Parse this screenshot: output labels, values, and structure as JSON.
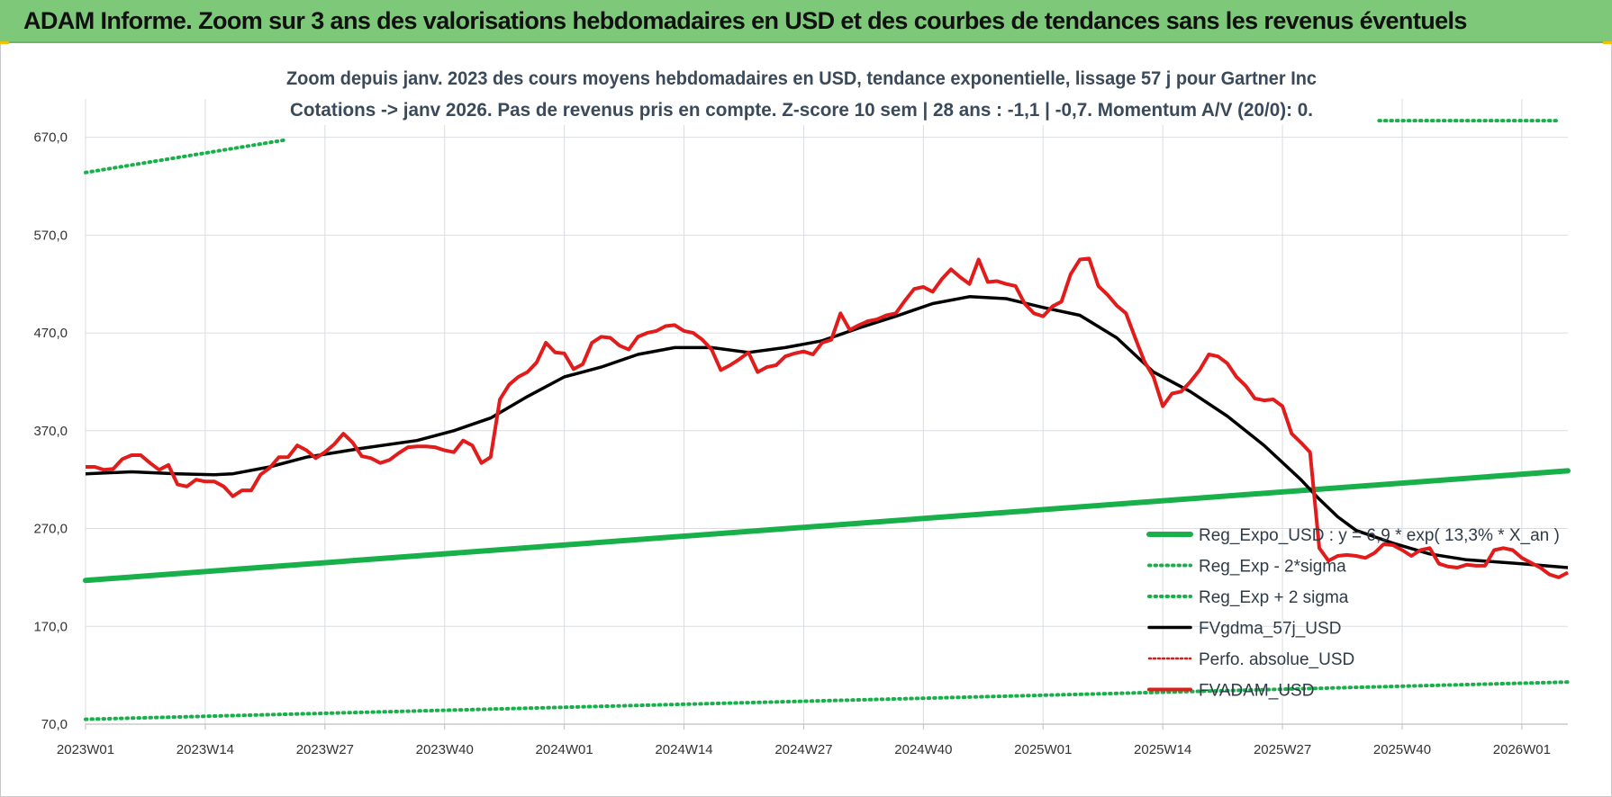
{
  "banner_title": "ADAM Informe. Zoom sur 3 ans des valorisations hebdomadaires en USD et des courbes de tendances sans les revenus éventuels",
  "chart_data": {
    "type": "line",
    "title_line1": "Zoom depuis janv. 2023 des cours moyens hebdomadaires en USD, tendance exponentielle, lissage 57 j pour Gartner Inc",
    "title_line2": "Cotations -> janv 2026. Pas de revenus pris en compte. Z-score 10 sem | 28 ans : -1,1 | -0,7. Momentum A/V (20/0): 0.",
    "x_tick_labels": [
      "2023W01",
      "2023W14",
      "2023W27",
      "2023W40",
      "2024W01",
      "2024W14",
      "2024W27",
      "2024W40",
      "2025W01",
      "2025W14",
      "2025W27",
      "2025W40",
      "2026W01"
    ],
    "x_tick_weeks": [
      0,
      13,
      26,
      39,
      52,
      65,
      78,
      91,
      104,
      117,
      130,
      143,
      156
    ],
    "x_range": [
      0,
      161
    ],
    "ylim": [
      70,
      700
    ],
    "y_ticks": [
      70,
      170,
      270,
      370,
      470,
      570,
      670
    ],
    "y_tick_labels": [
      "70,0",
      "170,0",
      "270,0",
      "370,0",
      "470,0",
      "570,0",
      "670,0"
    ],
    "grid": true,
    "legend_position": "bottom-right",
    "colors": {
      "reg_expo": "#19b04b",
      "sigma_band": "#19b04b",
      "fvgdma": "#000000",
      "perfo": "#d81b1b",
      "fvadam": "#e21b1b",
      "grid": "#d9dde2",
      "axis": "#bfbfbf"
    },
    "series": [
      {
        "name": "Reg_Expo_USD : y = 6,9 * exp( 13,3% * X_an )",
        "style": "thick-solid",
        "x": [
          0,
          161
        ],
        "values": [
          217,
          329
        ]
      },
      {
        "name": "Reg_Exp - 2*sigma",
        "style": "dotted",
        "x": [
          0,
          161
        ],
        "values": [
          75,
          113
        ]
      },
      {
        "name": "Reg_Exp + 2 sigma",
        "style": "dotted",
        "segments": [
          {
            "x": [
              0,
              21.5
            ],
            "values": [
              634,
              667
            ]
          },
          {
            "x": [
              140.5,
              160
            ],
            "values": [
              687,
              687
            ]
          }
        ]
      },
      {
        "name": "FVgdma_57j_USD",
        "style": "solid",
        "x": [
          0,
          5,
          10,
          14,
          16,
          20,
          24,
          30,
          36,
          40,
          44,
          48,
          52,
          56,
          60,
          64,
          68,
          72,
          76,
          80,
          84,
          88,
          92,
          96,
          100,
          104,
          108,
          112,
          116,
          120,
          124,
          128,
          132,
          134,
          136,
          138,
          142,
          146,
          150,
          156,
          161
        ],
        "values": [
          326,
          328,
          326,
          325,
          326,
          333,
          343,
          352,
          360,
          370,
          383,
          405,
          425,
          435,
          448,
          455,
          455,
          450,
          455,
          462,
          475,
          487,
          500,
          507,
          505,
          496,
          488,
          465,
          430,
          410,
          385,
          355,
          320,
          300,
          282,
          268,
          255,
          244,
          238,
          234,
          230
        ]
      },
      {
        "name": "Perfo. absolue_USD",
        "style": "dotted",
        "x": [],
        "values": []
      },
      {
        "name": "FVADAM_USD",
        "style": "thick-solid",
        "x": [
          0,
          1,
          2,
          3,
          4,
          5,
          6,
          7,
          8,
          9,
          10,
          11,
          12,
          13,
          14,
          15,
          16,
          17,
          18,
          19,
          20,
          21,
          22,
          23,
          24,
          25,
          26,
          27,
          28,
          29,
          30,
          31,
          32,
          33,
          34,
          35,
          36,
          37,
          38,
          39,
          40,
          41,
          42,
          43,
          44,
          45,
          46,
          47,
          48,
          49,
          50,
          51,
          52,
          53,
          54,
          55,
          56,
          57,
          58,
          59,
          60,
          61,
          62,
          63,
          64,
          65,
          66,
          67,
          68,
          69,
          70,
          71,
          72,
          73,
          74,
          75,
          76,
          77,
          78,
          79,
          80,
          81,
          82,
          83,
          84,
          85,
          86,
          87,
          88,
          89,
          90,
          91,
          92,
          93,
          94,
          95,
          96,
          97,
          98,
          99,
          100,
          101,
          102,
          103,
          104,
          105,
          106,
          107,
          108,
          109,
          110,
          111,
          112,
          113,
          114,
          115,
          116,
          117,
          118,
          119,
          120,
          121,
          122,
          123,
          124,
          125,
          126,
          127,
          128,
          129,
          130,
          131,
          132,
          133,
          134,
          135,
          136,
          137,
          138,
          139,
          140,
          141,
          142,
          143,
          144,
          145,
          146,
          147,
          148,
          149,
          150,
          151,
          152,
          153,
          154,
          155,
          156,
          157,
          158,
          159,
          160,
          161
        ],
        "values": [
          333,
          333,
          330,
          331,
          341,
          345,
          345,
          337,
          330,
          335,
          315,
          313,
          320,
          318,
          318,
          313,
          303,
          309,
          309,
          325,
          332,
          343,
          343,
          355,
          350,
          342,
          348,
          356,
          367,
          358,
          344,
          342,
          337,
          340,
          347,
          353,
          354,
          354,
          353,
          350,
          348,
          360,
          355,
          337,
          343,
          402,
          417,
          425,
          430,
          440,
          460,
          450,
          449,
          433,
          438,
          460,
          466,
          465,
          457,
          453,
          466,
          470,
          472,
          477,
          478,
          472,
          470,
          463,
          453,
          432,
          437,
          443,
          450,
          430,
          435,
          437,
          446,
          449,
          451,
          448,
          460,
          463,
          490,
          473,
          478,
          482,
          484,
          488,
          490,
          503,
          515,
          517,
          512,
          525,
          535,
          527,
          520,
          545,
          522,
          523,
          520,
          518,
          500,
          490,
          487,
          497,
          502,
          530,
          545,
          546,
          518,
          509,
          498,
          490,
          465,
          441,
          425,
          395,
          408,
          410,
          420,
          432,
          448,
          446,
          439,
          425,
          416,
          403,
          401,
          402,
          395,
          367,
          358,
          348,
          250,
          237,
          242,
          243,
          242,
          240,
          245,
          254,
          253,
          248,
          242,
          248,
          250,
          234,
          231,
          230,
          233,
          232,
          232,
          248,
          250,
          248,
          240,
          235,
          230,
          223,
          220,
          225
        ]
      }
    ]
  }
}
